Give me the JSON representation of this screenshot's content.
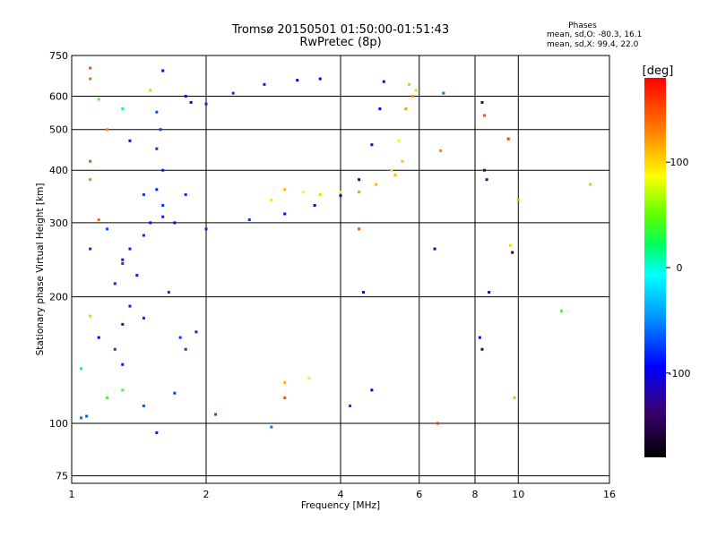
{
  "title_line1": "Tromsø 20150501 01:50:00-01:51:43",
  "title_line2": "RwPretec (8p)",
  "stats": {
    "heading": "Phases",
    "line1": "mean, sd,O: -80.3, 16.1",
    "line2": "mean, sd,X:  99.4, 22.0"
  },
  "colorbar": {
    "unit_label": "[deg]",
    "ticks": [
      100,
      0,
      -100
    ],
    "range": [
      -180,
      180
    ]
  },
  "chart_data": {
    "type": "scatter",
    "xlabel": "Frequency [MHz]",
    "ylabel": "Stationary phase Virtual Height [km]",
    "xscale": "log",
    "yscale": "log",
    "xlim": [
      1,
      16
    ],
    "ylim": [
      72,
      750
    ],
    "xticks": [
      1,
      2,
      4,
      6,
      8,
      10,
      16
    ],
    "yticks": [
      75,
      100,
      200,
      300,
      400,
      500,
      600,
      750
    ],
    "grid": true,
    "colorbar": "phase [deg], rainbow colormap, -180 (black) to 180 (red)",
    "series": [
      {
        "role": "O-mode trace",
        "points": [
          [
            1.05,
            103,
            -60
          ],
          [
            1.08,
            104,
            -70
          ],
          [
            1.3,
            138,
            -90
          ],
          [
            1.25,
            150,
            -80
          ],
          [
            1.15,
            160,
            -100
          ],
          [
            1.3,
            172,
            -95
          ],
          [
            1.45,
            178,
            -90
          ],
          [
            1.35,
            190,
            -90
          ],
          [
            1.25,
            215,
            -85
          ],
          [
            1.4,
            225,
            -90
          ],
          [
            1.3,
            240,
            -80
          ],
          [
            1.35,
            260,
            -90
          ],
          [
            1.45,
            280,
            -85
          ],
          [
            1.5,
            300,
            -95
          ],
          [
            1.6,
            310,
            -90
          ],
          [
            1.7,
            300,
            -100
          ],
          [
            1.6,
            330,
            -80
          ],
          [
            1.55,
            360,
            -85
          ],
          [
            1.6,
            400,
            -90
          ],
          [
            1.55,
            450,
            -85
          ],
          [
            1.58,
            500,
            -80
          ],
          [
            1.55,
            550,
            -75
          ],
          [
            1.8,
            600,
            -95
          ],
          [
            1.85,
            580,
            -100
          ],
          [
            2.0,
            575,
            -85
          ],
          [
            2.3,
            610,
            -80
          ],
          [
            2.7,
            640,
            -90
          ],
          [
            3.2,
            655,
            -120
          ],
          [
            3.6,
            660,
            -110
          ],
          [
            2.0,
            290,
            -85
          ],
          [
            2.5,
            305,
            -80
          ],
          [
            3.0,
            315,
            -95
          ],
          [
            3.5,
            330,
            -120
          ],
          [
            4.0,
            348,
            -110
          ],
          [
            4.4,
            380,
            -115
          ],
          [
            4.7,
            460,
            -120
          ],
          [
            4.9,
            560,
            -105
          ],
          [
            5.0,
            650,
            -110
          ],
          [
            1.45,
            110,
            -70
          ],
          [
            1.55,
            95,
            -90
          ],
          [
            1.7,
            118,
            -80
          ],
          [
            1.8,
            150,
            -80
          ],
          [
            1.9,
            165,
            -90
          ],
          [
            1.75,
            160,
            -80
          ],
          [
            1.65,
            205,
            -85
          ],
          [
            1.2,
            290,
            -75
          ],
          [
            1.1,
            260,
            -85
          ],
          [
            1.3,
            245,
            -90
          ],
          [
            1.45,
            350,
            -80
          ],
          [
            1.8,
            350,
            -85
          ]
        ]
      },
      {
        "role": "X-mode trace",
        "points": [
          [
            2.8,
            340,
            95
          ],
          [
            3.0,
            360,
            110
          ],
          [
            3.3,
            355,
            90
          ],
          [
            3.6,
            350,
            100
          ],
          [
            4.0,
            355,
            80
          ],
          [
            4.4,
            355,
            120
          ],
          [
            4.8,
            370,
            110
          ],
          [
            5.2,
            400,
            95
          ],
          [
            5.4,
            470,
            90
          ],
          [
            5.6,
            560,
            120
          ],
          [
            5.7,
            640,
            110
          ],
          [
            5.8,
            600,
            125
          ],
          [
            5.9,
            620,
            100
          ],
          [
            5.5,
            420,
            105
          ],
          [
            5.3,
            390,
            110
          ]
        ]
      },
      {
        "role": "scattered points",
        "points": [
          [
            1.1,
            700,
            150
          ],
          [
            1.1,
            660,
            140
          ],
          [
            1.15,
            590,
            40
          ],
          [
            1.2,
            500,
            130
          ],
          [
            1.1,
            380,
            130
          ],
          [
            1.1,
            420,
            150
          ],
          [
            1.15,
            305,
            140
          ],
          [
            1.3,
            560,
            10
          ],
          [
            1.35,
            470,
            -120
          ],
          [
            1.5,
            620,
            60
          ],
          [
            1.6,
            690,
            -110
          ],
          [
            1.2,
            115,
            40
          ],
          [
            1.3,
            120,
            40
          ],
          [
            1.05,
            135,
            10
          ],
          [
            1.1,
            180,
            60
          ],
          [
            2.1,
            105,
            -70
          ],
          [
            2.8,
            98,
            -60
          ],
          [
            3.0,
            125,
            110
          ],
          [
            3.0,
            115,
            150
          ],
          [
            3.4,
            128,
            90
          ],
          [
            4.2,
            110,
            -80
          ],
          [
            4.4,
            290,
            150
          ],
          [
            4.5,
            205,
            -100
          ],
          [
            4.7,
            120,
            -100
          ],
          [
            6.5,
            260,
            -120
          ],
          [
            6.6,
            100,
            160
          ],
          [
            6.7,
            445,
            130
          ],
          [
            6.8,
            610,
            -60
          ],
          [
            8.2,
            160,
            -120
          ],
          [
            8.3,
            150,
            -120
          ],
          [
            8.4,
            400,
            -140
          ],
          [
            8.5,
            380,
            -130
          ],
          [
            8.3,
            580,
            -130
          ],
          [
            8.4,
            540,
            150
          ],
          [
            8.6,
            205,
            -100
          ],
          [
            9.5,
            475,
            160
          ],
          [
            9.6,
            265,
            100
          ],
          [
            9.7,
            255,
            -160
          ],
          [
            9.8,
            115,
            110
          ],
          [
            12.5,
            185,
            40
          ],
          [
            14.5,
            370,
            110
          ],
          [
            10.0,
            340,
            50
          ]
        ]
      }
    ]
  }
}
